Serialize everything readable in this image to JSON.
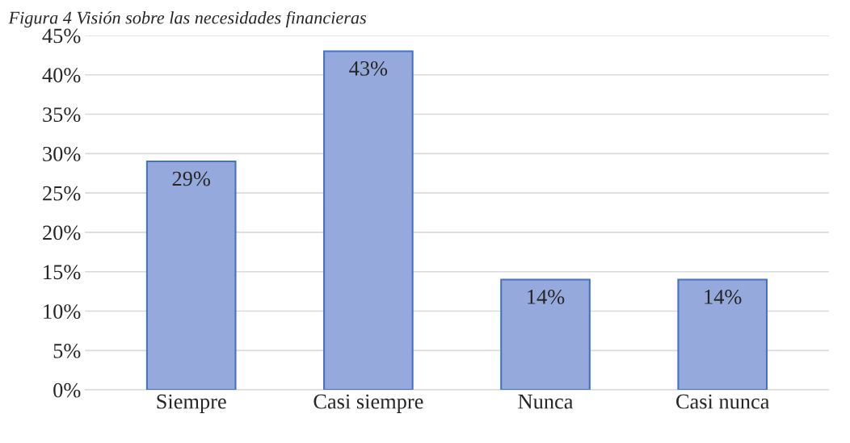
{
  "chart_data": {
    "type": "bar",
    "title": "Figura 4 Visión sobre las necesidades financieras",
    "categories": [
      "Siempre",
      "Casi siempre",
      "Nunca",
      "Casi nunca"
    ],
    "values": [
      29,
      43,
      14,
      14
    ],
    "value_labels": [
      "29%",
      "43%",
      "14%",
      "14%"
    ],
    "color": "#96a9dc",
    "ylim": [
      0,
      45
    ],
    "yticks": [
      {
        "value": 0,
        "label": "0%"
      },
      {
        "value": 5,
        "label": "5%"
      },
      {
        "value": 10,
        "label": "10%"
      },
      {
        "value": 15,
        "label": "15%"
      },
      {
        "value": 20,
        "label": "20%"
      },
      {
        "value": 25,
        "label": "25%"
      },
      {
        "value": 30,
        "label": "30%"
      },
      {
        "value": 35,
        "label": "35%"
      },
      {
        "value": 40,
        "label": "40%"
      },
      {
        "value": 45,
        "label": "45%"
      }
    ],
    "grid": "y"
  }
}
